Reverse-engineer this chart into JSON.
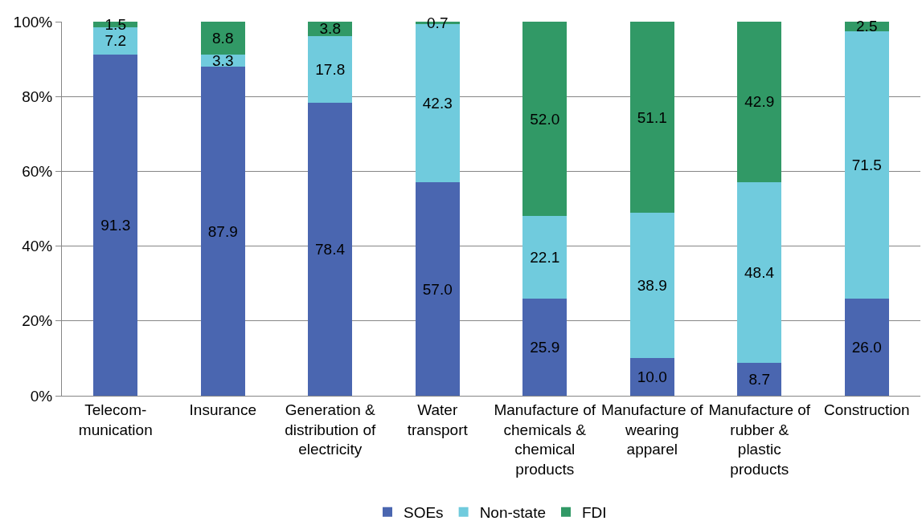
{
  "chart_data": {
    "type": "bar",
    "stacked": true,
    "categories": [
      "Telecom-munication",
      "Insurance",
      "Generation & distribution of electricity",
      "Water transport",
      "Manufacture of chemicals & chemical products",
      "Manufacture of wearing apparel",
      "Manufacture of rubber & plastic products",
      "Construction"
    ],
    "series": [
      {
        "name": "SOEs",
        "color": "#4a66b0",
        "values": [
          91.3,
          87.9,
          78.4,
          57.0,
          25.9,
          10.0,
          8.7,
          26.0
        ],
        "value_labels": [
          "91.3",
          "87.9",
          "78.4",
          "57.0",
          "25.9",
          "10.0",
          "8.7",
          "26.0"
        ]
      },
      {
        "name": "Non-state",
        "color": "#70cbdd",
        "values": [
          7.2,
          3.3,
          17.8,
          42.3,
          22.1,
          38.9,
          48.4,
          71.5
        ],
        "value_labels": [
          "7.2",
          "3.3",
          "17.8",
          "42.3",
          "22.1",
          "38.9",
          "48.4",
          "71.5"
        ]
      },
      {
        "name": "FDI",
        "color": "#319966",
        "values": [
          1.5,
          8.8,
          3.8,
          0.7,
          52.0,
          51.1,
          42.9,
          2.5
        ],
        "value_labels": [
          "1.5",
          "8.8",
          "3.8",
          "0.7",
          "52.0",
          "51.1",
          "42.9",
          "2.5"
        ]
      }
    ],
    "ylim": [
      0,
      100
    ],
    "yticks": [
      {
        "value": 0,
        "label": "0%"
      },
      {
        "value": 20,
        "label": "20%"
      },
      {
        "value": 40,
        "label": "40%"
      },
      {
        "value": 60,
        "label": "60%"
      },
      {
        "value": 80,
        "label": "80%"
      },
      {
        "value": 100,
        "label": "100%"
      }
    ],
    "grid": "y",
    "legend": "bottom"
  }
}
